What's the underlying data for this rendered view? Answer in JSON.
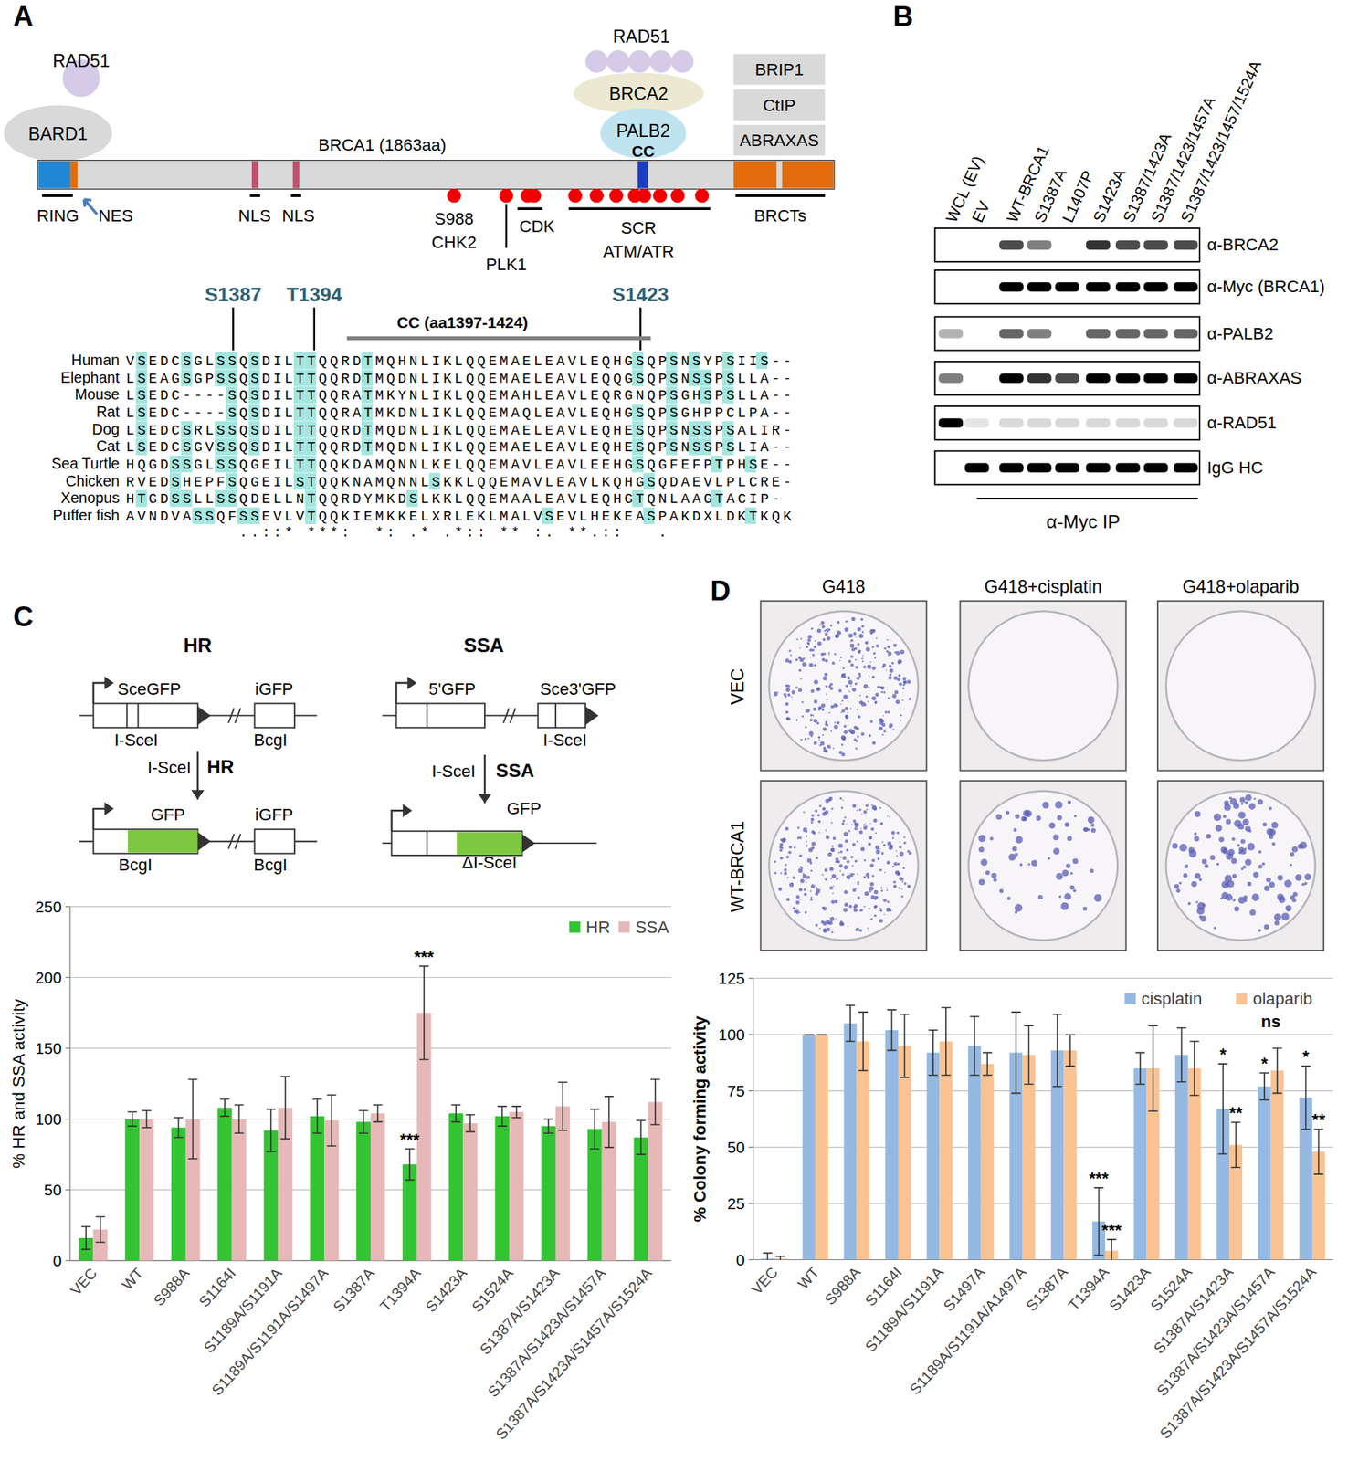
{
  "panel_labels": [
    "A",
    "B",
    "C",
    "D"
  ],
  "panel_a": {
    "protein": "BRCA1 (1863aa)",
    "partners": {
      "rad51_left": "RAD51",
      "bard1": "BARD1",
      "rad51_right": "RAD51",
      "brca2": "BRCA2",
      "palb2": "PALB2",
      "brct_partners": [
        "BRIP1",
        "CtIP",
        "ABRAXAS"
      ]
    },
    "domain_labels": {
      "ring": "RING",
      "nes": "NES",
      "nls": [
        "NLS",
        "NLS"
      ],
      "cc": "CC",
      "brcts": "BRCTs"
    },
    "kinase_labels": {
      "s988": "S988",
      "chk2": "CHK2",
      "plk1": "PLK1",
      "cdk": "CDK",
      "scr": "SCR",
      "atm_atr": "ATM/ATR"
    },
    "alignment": {
      "sites": [
        "S1387",
        "T1394",
        "S1423"
      ],
      "cc_label": "CC (aa1397-1424)",
      "rows": [
        {
          "species": "Human",
          "sequence": "VSEDCSGLSSQSDILTTQQRDTMQHNLIKLQQEMAELEAVLEQHGSQPSNSYPSIIS--"
        },
        {
          "species": "Elephant",
          "sequence": "LSEAGSGPSSQSDILTTQQRDTMQDNLIKLQQEMAELEAVLEQQGSQPSNSSPSLLA--"
        },
        {
          "species": "Mouse",
          "sequence": "LSEDC----SQSDILTTQQRATMKYNLIKLQQEMAHLEAVLEQRGNQPSGHSPSLLA--"
        },
        {
          "species": "Rat",
          "sequence": "LSEDC----SQSDILTTQQRATMKDNLIKLQQEMAQLEAVLEQHGSQPSGHPPCLPA--"
        },
        {
          "species": "Dog",
          "sequence": "LSEDCSRLSSQSDILTTQQRDTMQDNLIKLQQEMAELEAVLEQHESQPSNSSPSALIR-"
        },
        {
          "species": "Cat",
          "sequence": "LSEDCSGVSSQSDILTTQQRDTMQDNLIKLQQEMAELEAVLEQHESQPSNSSPSLIA--"
        },
        {
          "species": "Sea Turtle",
          "sequence": "HQGDSSGLSSQGEILTTQQKDAMQNNLKELQQEMAVLEAVLEEHGSQGFEFPTPHSE--"
        },
        {
          "species": "Chicken",
          "sequence": "RVEDSHEPFSQGEILSTQQKNAMQNNLSKKLQQEMAVLEAVLKQHGSQDAEVLPLCRE-"
        },
        {
          "species": "Xenopus",
          "sequence": "HTGDSSLLSSQDELLNTQQRDYMKDSLKKLQQEMAALEAVLEQHGTQNLAAGTACIP-"
        },
        {
          "species": "Puffer fish",
          "sequence": "AVNDVASSQFSSEVLVTQQKIEMKKELXRLEKLMALVSEVLHEKEASPAKDXLDKTKQK"
        }
      ],
      "consensus": "          ..::* ***:  *: .* .*:: ** :. **.::   .           "
    }
  },
  "panel_b": {
    "lanes": [
      "WCL (EV)",
      "EV",
      "WT-BRCA1",
      "S1387A",
      "L1407P",
      "S1423A",
      "S1387/1423A",
      "S1387/1423/1457A",
      "S1387/1423/1457/1524A"
    ],
    "blots": [
      {
        "antibody": "α-BRCA2",
        "intensity": [
          0,
          0,
          0.7,
          0.5,
          0,
          0.8,
          0.7,
          0.7,
          0.7
        ]
      },
      {
        "antibody": "α-Myc (BRCA1)",
        "intensity": [
          0,
          0,
          1,
          1,
          1,
          1,
          1,
          1,
          1
        ]
      },
      {
        "antibody": "α-PALB2",
        "intensity": [
          0.3,
          0,
          0.6,
          0.5,
          0,
          0.6,
          0.6,
          0.6,
          0.6
        ]
      },
      {
        "antibody": "α-ABRAXAS",
        "intensity": [
          0.5,
          0,
          1,
          0.8,
          0.7,
          1,
          1,
          1,
          1
        ]
      },
      {
        "antibody": "α-RAD51",
        "intensity": [
          1,
          0.1,
          0.15,
          0.15,
          0.15,
          0.15,
          0.15,
          0.15,
          0.15
        ]
      },
      {
        "antibody": "IgG HC",
        "intensity": [
          0,
          1,
          1,
          1,
          1,
          1,
          1,
          1,
          1
        ]
      }
    ],
    "ip_label": "α-Myc IP"
  },
  "panel_c_schematic": {
    "hr": {
      "title": "HR",
      "gene": "SceGFP",
      "donor": "iGFP",
      "cut": "I-SceI",
      "site": "BcgI",
      "arrow_left": "I-SceI",
      "arrow_right": "HR",
      "product": "GFP",
      "product_donor": "iGFP",
      "product_sites": [
        "BcgI",
        "BcgI"
      ]
    },
    "ssa": {
      "title": "SSA",
      "upstream": "5'GFP",
      "downstream": "Sce3'GFP",
      "cut": "I-SceI",
      "arrow_left": "I-SceI",
      "arrow_right": "SSA",
      "product": "GFP",
      "product_site": "ΔI-SceI"
    }
  },
  "panel_d_images": {
    "conditions": [
      "G418",
      "G418+cisplatin",
      "G418+olaparib"
    ],
    "rows": [
      "VEC",
      "WT-BRCA1"
    ],
    "colonies": [
      [
        300,
        0,
        0
      ],
      [
        300,
        60,
        120
      ]
    ]
  },
  "chart_data": [
    {
      "type": "bar",
      "ylabel": "% HR and SSA activity",
      "categories": [
        "VEC",
        "WT",
        "S988A",
        "S1164I",
        "S1189A/S1191A",
        "S1189A/S1191A/S1497A",
        "S1387A",
        "T1394A",
        "S1423A",
        "S1524A",
        "S1387A/S1423A",
        "S1387A/S1423A/S1457A",
        "S1387A/S1423A/S1457A/S1524A"
      ],
      "series": [
        {
          "name": "HR",
          "color": "#33c433",
          "values": [
            16,
            100,
            94,
            108,
            92,
            102,
            98,
            68,
            104,
            102,
            95,
            93,
            87
          ],
          "errors": [
            8,
            5,
            7,
            6,
            15,
            12,
            8,
            11,
            6,
            7,
            5,
            14,
            12
          ]
        },
        {
          "name": "SSA",
          "color": "#e6b9b8",
          "values": [
            22,
            100,
            100,
            100,
            108,
            99,
            104,
            175,
            97,
            105,
            109,
            98,
            112
          ],
          "errors": [
            9,
            6,
            28,
            10,
            22,
            18,
            6,
            33,
            6,
            4,
            17,
            18,
            16
          ]
        }
      ],
      "ylim": [
        0,
        250
      ],
      "yticks": [
        0,
        50,
        100,
        150,
        200,
        250
      ],
      "grid": true,
      "legend": "top-right",
      "annotations": [
        {
          "text": "***",
          "category": "T1394A",
          "series": "HR"
        },
        {
          "text": "***",
          "category": "T1394A",
          "series": "SSA"
        }
      ]
    },
    {
      "type": "bar",
      "ylabel": "% Colony forming activity",
      "categories": [
        "VEC",
        "WT",
        "S988A",
        "S1164I",
        "S1189A/S1191A",
        "S1497A",
        "S1189A/S1191A/A1497A",
        "S1387A",
        "T1394A",
        "S1423A",
        "S1524A",
        "S1387A/S1423A",
        "S1387A/S1423A/S1457A",
        "S1387A/S1423A/S1457A/S1524A"
      ],
      "series": [
        {
          "name": "cisplatin",
          "color": "#95b9e3",
          "values": [
            0.5,
            100,
            105,
            102,
            92,
            95,
            92,
            93,
            17,
            85,
            91,
            67,
            77,
            72
          ],
          "errors": [
            2.5,
            0,
            8,
            9,
            10,
            13,
            18,
            16,
            15,
            7,
            12,
            20,
            6,
            14
          ]
        },
        {
          "name": "olaparib",
          "color": "#f9c393",
          "values": [
            0.5,
            100,
            97,
            95,
            97,
            87,
            91,
            93,
            4,
            85,
            85,
            51,
            84,
            48
          ],
          "errors": [
            1,
            0,
            13,
            14,
            15,
            5,
            13,
            7,
            5,
            19,
            12,
            10,
            10,
            10
          ]
        }
      ],
      "ylim": [
        0,
        125
      ],
      "yticks": [
        0,
        25,
        50,
        75,
        100,
        125
      ],
      "grid": true,
      "legend": "top-right",
      "annotations": [
        {
          "text": "***",
          "category": "T1394A",
          "series": "cisplatin"
        },
        {
          "text": "***",
          "category": "T1394A",
          "series": "olaparib"
        },
        {
          "text": "*",
          "category": "S1387A/S1423A",
          "series": "cisplatin"
        },
        {
          "text": "**",
          "category": "S1387A/S1423A",
          "series": "olaparib"
        },
        {
          "text": "*",
          "category": "S1387A/S1423A/S1457A",
          "series": "cisplatin"
        },
        {
          "text": "ns",
          "category": "S1387A/S1423A/S1457A"
        },
        {
          "text": "*",
          "category": "S1387A/S1423A/S1457A/S1524A",
          "series": "cisplatin"
        },
        {
          "text": "**",
          "category": "S1387A/S1423A/S1457A/S1524A",
          "series": "olaparib"
        }
      ]
    }
  ]
}
